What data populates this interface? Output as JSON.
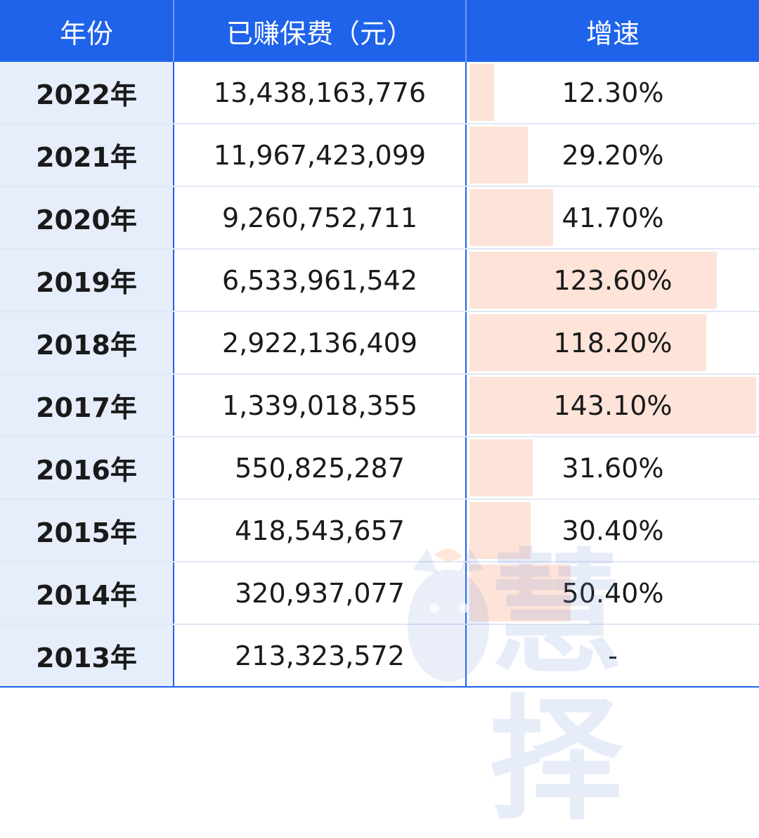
{
  "header": {
    "col_year": "年份",
    "col_premium": "已赚保费（元）",
    "col_growth": "增速"
  },
  "colors": {
    "header_bg": "#1e63ea",
    "year_col_bg": "#e6edfb",
    "growth_bar": "#fde3d8"
  },
  "rows": [
    {
      "year": "2022年",
      "premium": "13,438,163,776",
      "growth": "12.30%",
      "growth_value": 12.3
    },
    {
      "year": "2021年",
      "premium": "11,967,423,099",
      "growth": "29.20%",
      "growth_value": 29.2
    },
    {
      "year": "2020年",
      "premium": "9,260,752,711",
      "growth": "41.70%",
      "growth_value": 41.7
    },
    {
      "year": "2019年",
      "premium": "6,533,961,542",
      "growth": "123.60%",
      "growth_value": 123.6
    },
    {
      "year": "2018年",
      "premium": "2,922,136,409",
      "growth": "118.20%",
      "growth_value": 118.2
    },
    {
      "year": "2017年",
      "premium": "1,339,018,355",
      "growth": "143.10%",
      "growth_value": 143.1
    },
    {
      "year": "2016年",
      "premium": "550,825,287",
      "growth": "31.60%",
      "growth_value": 31.6
    },
    {
      "year": "2015年",
      "premium": "418,543,657",
      "growth": "30.40%",
      "growth_value": 30.4
    },
    {
      "year": "2014年",
      "premium": "320,937,077",
      "growth": "50.40%",
      "growth_value": 50.4
    },
    {
      "year": "2013年",
      "premium": "213,323,572",
      "growth": "-",
      "growth_value": 0
    }
  ],
  "growth_bar_max": 143.1,
  "watermark": {
    "icon": "mascot-logo-icon",
    "text": "慧择"
  }
}
